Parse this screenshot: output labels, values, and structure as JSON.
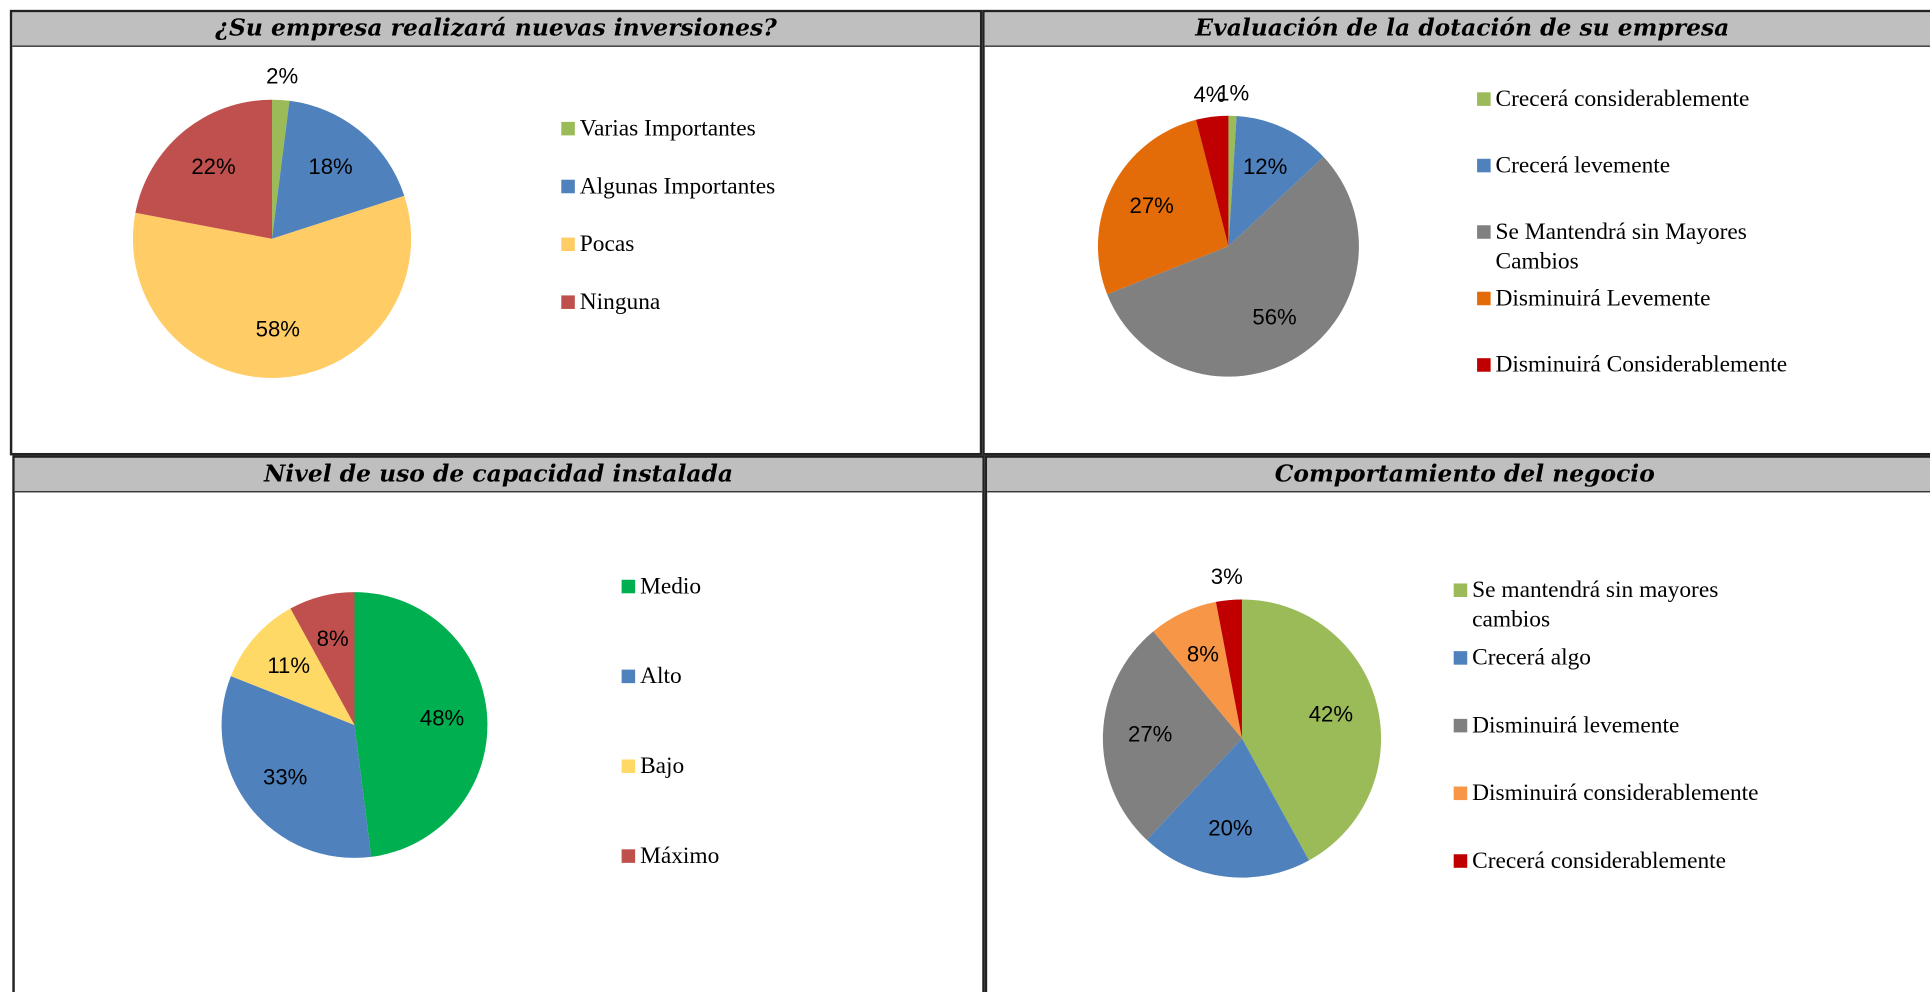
{
  "chart_data": [
    {
      "type": "pie",
      "title": "¿Su empresa realizará nuevas inversiones?",
      "categories": [
        "Varias Importantes",
        "Algunas Importantes",
        "Pocas",
        "Ninguna"
      ],
      "values": [
        2,
        18,
        58,
        22
      ],
      "value_labels": [
        "2%",
        "18%",
        "58%",
        "22%"
      ],
      "colors": [
        "#9bbb59",
        "#4f81bd",
        "#ffcc66",
        "#c0504d"
      ]
    },
    {
      "type": "pie",
      "title": "Evaluación de la dotación de su empresa",
      "categories": [
        "Crecerá considerablemente",
        "Crecerá levemente",
        "Se Mantendrá sin Mayores Cambios",
        "Disminuirá Levemente",
        "Disminuirá Considerablemente"
      ],
      "values": [
        1,
        12,
        56,
        27,
        4
      ],
      "value_labels": [
        "1%",
        "12%",
        "56%",
        "27%",
        "4%"
      ],
      "colors": [
        "#9bbb59",
        "#4f81bd",
        "#808080",
        "#e36c09",
        "#c00000"
      ]
    },
    {
      "type": "pie",
      "title": "Nivel de uso de capacidad instalada",
      "categories": [
        "Medio",
        "Alto",
        "Bajo",
        "Máximo"
      ],
      "values": [
        48,
        33,
        11,
        8
      ],
      "value_labels": [
        "48%",
        "33%",
        "11%",
        "8%"
      ],
      "colors": [
        "#00b050",
        "#4f81bd",
        "#ffd966",
        "#c0504d"
      ]
    },
    {
      "type": "pie",
      "title": "Comportamiento del negocio",
      "categories": [
        "Se mantendrá sin mayores cambios",
        "Crecerá algo",
        "Disminuirá levemente",
        "Disminuirá considerablemente",
        "Crecerá considerablemente"
      ],
      "values": [
        42,
        20,
        27,
        8,
        3
      ],
      "value_labels": [
        "42%",
        "20%",
        "27%",
        "8%",
        "3%"
      ],
      "colors": [
        "#9bbb59",
        "#4f81bd",
        "#808080",
        "#f79646",
        "#c00000"
      ]
    }
  ]
}
